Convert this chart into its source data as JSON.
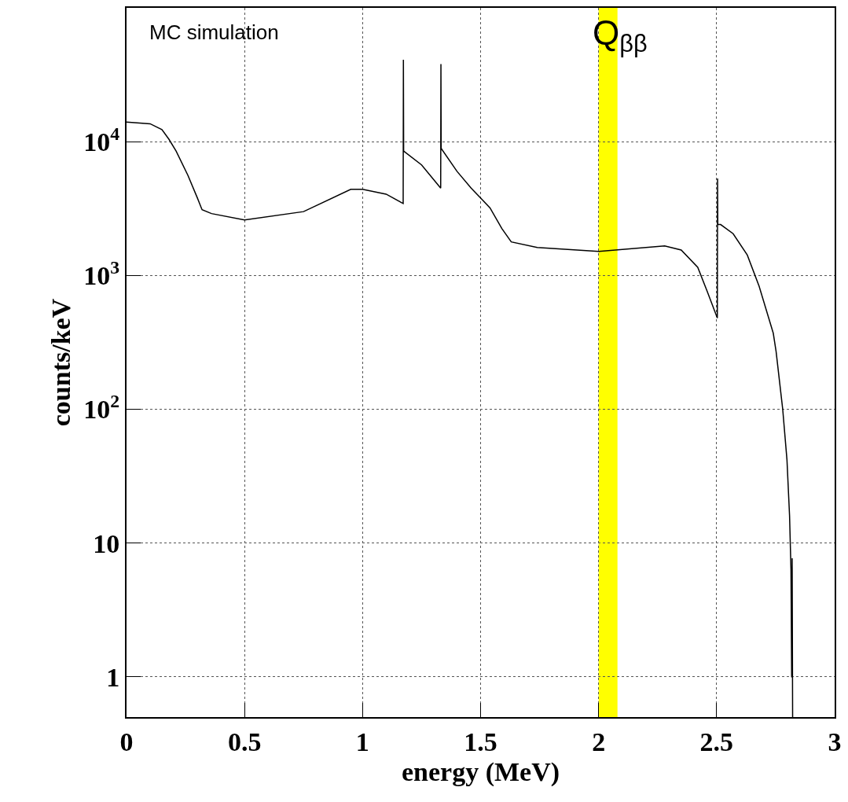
{
  "chart_data": {
    "type": "line",
    "xlabel": "energy (MeV)",
    "ylabel": "counts/keV",
    "annotations": [
      "MC simulation"
    ],
    "x": [
      0,
      0.1,
      0.15,
      0.18,
      0.21,
      0.26,
      0.3,
      0.32,
      0.36,
      0.5,
      0.75,
      0.95,
      1.0,
      1.1,
      1.172,
      1.173,
      1.174,
      1.25,
      1.331,
      1.332,
      1.333,
      1.4,
      1.46,
      1.54,
      1.59,
      1.63,
      1.74,
      2.0,
      2.28,
      2.35,
      2.42,
      2.46,
      2.503,
      2.504,
      2.505,
      2.517,
      2.57,
      2.63,
      2.68,
      2.74,
      2.752,
      2.78,
      2.798,
      2.809,
      2.815,
      2.818,
      2.819,
      2.82,
      2.822
    ],
    "series": [
      {
        "color": "#000000",
        "values": [
          14000,
          13600,
          12300,
          10400,
          8500,
          5600,
          3800,
          3100,
          2900,
          2600,
          3000,
          4400,
          4400,
          4050,
          3450,
          41000,
          8500,
          6700,
          4500,
          38000,
          8900,
          6000,
          4500,
          3200,
          2240,
          1780,
          1620,
          1510,
          1660,
          1550,
          1150,
          760,
          480,
          5300,
          2400,
          2400,
          2050,
          1420,
          830,
          370,
          270,
          100,
          42,
          16,
          6.3,
          1,
          1,
          7.7,
          0.5
        ]
      }
    ],
    "xlim": [
      0,
      3
    ],
    "xticks": [
      0,
      0.5,
      1,
      1.5,
      2,
      2.5,
      3
    ],
    "ylim": [
      0.5,
      100000
    ],
    "yticks": [
      1,
      10,
      {
        "value": 100,
        "label": "10$^{2}$"
      },
      {
        "value": 1000,
        "label": "10$^{3}$"
      },
      {
        "value": 10000,
        "label": "10$^{4}$"
      }
    ],
    "log": "y",
    "grid": true,
    "marker": "none",
    "line_style": "solid",
    "bands": [
      {
        "axis": "x",
        "from": 2.0,
        "to": 2.08,
        "label": "Q$_{ββ}$",
        "color": "#ffff00"
      }
    ]
  }
}
